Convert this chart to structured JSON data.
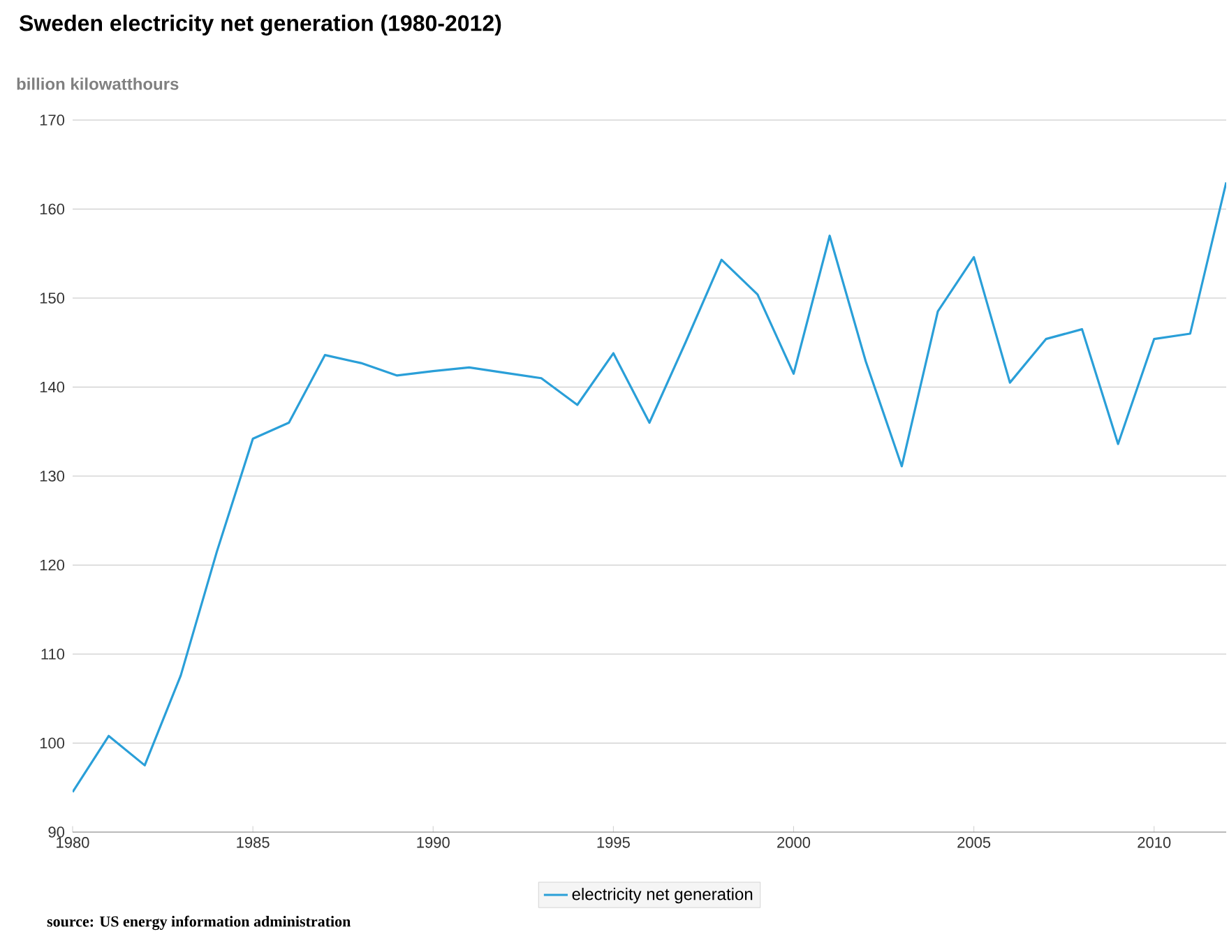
{
  "chart_data": {
    "type": "line",
    "title": "Sweden electricity net generation (1980-2012)",
    "ylabel": "billion kilowatthours",
    "annotations": [
      "source: US energy information administration"
    ],
    "x": [
      1980,
      1981,
      1982,
      1983,
      1984,
      1985,
      1986,
      1987,
      1988,
      1989,
      1990,
      1991,
      1992,
      1993,
      1994,
      1995,
      1996,
      1997,
      1998,
      1999,
      2000,
      2001,
      2002,
      2003,
      2004,
      2005,
      2006,
      2007,
      2008,
      2009,
      2010,
      2011,
      2012
    ],
    "series": [
      {
        "name": "electricity net generation",
        "color": "#2a9fd8",
        "values": [
          94.5,
          100.8,
          97.5,
          107.6,
          121.5,
          134.2,
          136,
          143.6,
          142.7,
          141.3,
          141.8,
          142.2,
          141.6,
          141,
          138,
          143.8,
          136,
          145,
          154.3,
          150.4,
          141.5,
          157,
          142.9,
          131.1,
          148.5,
          154.6,
          140.5,
          145.4,
          146.5,
          133.6,
          145.4,
          146,
          163
        ]
      }
    ],
    "xlim": [
      1980,
      2012
    ],
    "ylim": [
      90,
      170
    ],
    "xticks": [
      1980,
      1985,
      1990,
      1995,
      2000,
      2005,
      2010
    ],
    "yticks": [
      90,
      100,
      110,
      120,
      130,
      140,
      150,
      160,
      170
    ],
    "grid": "y",
    "legend": "bottom",
    "marker": "none",
    "line_style": "solid"
  }
}
